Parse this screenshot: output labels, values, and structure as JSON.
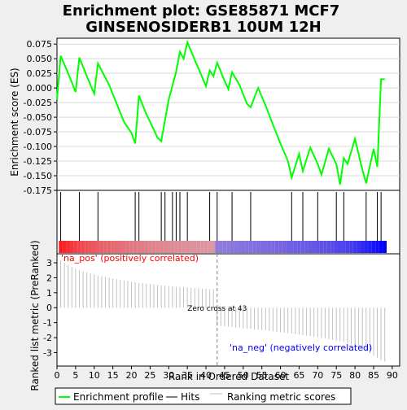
{
  "title_line1": "Enrichment plot: GSE85871 MCF7",
  "title_line2": "GINSENOSIDERB1 10UM 12H",
  "colors": {
    "background": "#efefef",
    "enrichment_line": "#00ff00",
    "hits": "#000000",
    "ranking_bars": "#c0c0c0",
    "zero_cross": "#808080",
    "pos_label": "#ff0000",
    "neg_label": "#0000ff"
  },
  "chart_data": [
    {
      "name": "enrichment-profile",
      "type": "line",
      "ylabel": "Enrichment score (ES)",
      "ylim": [
        -0.175,
        0.085
      ],
      "yticks": [
        0.075,
        0.05,
        0.025,
        0.0,
        -0.025,
        -0.05,
        -0.075,
        -0.1,
        -0.125,
        -0.15,
        -0.175
      ],
      "ytick_labels": [
        "0.075",
        "0.050",
        "0.025",
        "0.000",
        "-0.025",
        "-0.050",
        "-0.075",
        "-0.100",
        "-0.125",
        "-0.150",
        "-0.175"
      ],
      "xlim": [
        0,
        92
      ],
      "grid": true,
      "series": [
        {
          "x": [
            0,
            1,
            3,
            5,
            6,
            9,
            10,
            11,
            14,
            18,
            20,
            21,
            22,
            24,
            25,
            27,
            28,
            29,
            30,
            32,
            33,
            34,
            35,
            37,
            40,
            41,
            42,
            43,
            45,
            46,
            47,
            49,
            51,
            52,
            54,
            56,
            58,
            60,
            62,
            63,
            65,
            66,
            68,
            70,
            71,
            73,
            75,
            76,
            77,
            78,
            80,
            82,
            83,
            85,
            86,
            87,
            88
          ],
          "y": [
            -0.02,
            0.055,
            0.025,
            -0.007,
            0.052,
            0.005,
            -0.01,
            0.042,
            0.005,
            -0.058,
            -0.077,
            -0.095,
            -0.013,
            -0.045,
            -0.058,
            -0.085,
            -0.091,
            -0.055,
            -0.02,
            0.028,
            0.062,
            0.05,
            0.078,
            0.048,
            0.003,
            0.03,
            0.02,
            0.043,
            0.012,
            -0.002,
            0.027,
            0.005,
            -0.027,
            -0.033,
            0.0,
            -0.03,
            -0.063,
            -0.095,
            -0.125,
            -0.153,
            -0.113,
            -0.142,
            -0.102,
            -0.13,
            -0.148,
            -0.104,
            -0.13,
            -0.165,
            -0.12,
            -0.13,
            -0.087,
            -0.14,
            -0.163,
            -0.104,
            -0.135,
            0.015,
            0.015
          ]
        }
      ]
    },
    {
      "name": "hits",
      "type": "scatter",
      "x": [
        1,
        6,
        11,
        21,
        22,
        28,
        29,
        31,
        32,
        33,
        35,
        41,
        43,
        47,
        52,
        63,
        66,
        70,
        75,
        77,
        83,
        86,
        87
      ]
    },
    {
      "name": "ranking-metric",
      "type": "bar",
      "xlabel": "Rank in Ordered Dataset",
      "ylabel": "Ranked list metric (PreRanked)",
      "ylim": [
        -3.9,
        3.6
      ],
      "yticks": [
        3,
        2,
        1,
        0,
        -1,
        -2,
        -3
      ],
      "xticks": [
        0,
        5,
        10,
        15,
        20,
        25,
        30,
        35,
        40,
        45,
        50,
        55,
        60,
        65,
        70,
        75,
        80,
        85,
        90
      ],
      "zero_cross": 43,
      "zero_cross_label": "Zero cross at 43",
      "pos_label": "'na_pos' (positively correlated)",
      "neg_label": "'na_neg' (negatively correlated)",
      "x": [
        1,
        2,
        3,
        4,
        5,
        6,
        7,
        8,
        9,
        10,
        11,
        12,
        13,
        14,
        15,
        16,
        17,
        18,
        19,
        20,
        21,
        22,
        23,
        24,
        25,
        26,
        27,
        28,
        29,
        30,
        31,
        32,
        33,
        34,
        35,
        36,
        37,
        38,
        39,
        40,
        41,
        42,
        43,
        44,
        45,
        46,
        47,
        48,
        49,
        50,
        51,
        52,
        53,
        54,
        55,
        56,
        57,
        58,
        59,
        60,
        61,
        62,
        63,
        64,
        65,
        66,
        67,
        68,
        69,
        70,
        71,
        72,
        73,
        74,
        75,
        76,
        77,
        78,
        79,
        80,
        81,
        82,
        83,
        84,
        85,
        86,
        87,
        88
      ],
      "values": [
        3.15,
        3.0,
        2.85,
        2.72,
        2.6,
        2.5,
        2.42,
        2.35,
        2.28,
        2.22,
        2.16,
        2.1,
        2.05,
        2.0,
        1.95,
        1.9,
        1.86,
        1.82,
        1.78,
        1.74,
        1.7,
        1.67,
        1.64,
        1.61,
        1.58,
        1.55,
        1.52,
        1.49,
        1.47,
        1.45,
        1.43,
        1.41,
        1.39,
        1.37,
        1.35,
        1.33,
        1.31,
        1.29,
        1.27,
        1.26,
        1.25,
        1.24,
        -1.2,
        -1.22,
        -1.25,
        -1.27,
        -1.3,
        -1.32,
        -1.35,
        -1.37,
        -1.4,
        -1.42,
        -1.45,
        -1.47,
        -1.5,
        -1.52,
        -1.55,
        -1.58,
        -1.61,
        -1.64,
        -1.67,
        -1.7,
        -1.73,
        -1.76,
        -1.8,
        -1.83,
        -1.87,
        -1.9,
        -1.94,
        -1.98,
        -2.02,
        -2.06,
        -2.1,
        -2.15,
        -2.2,
        -2.25,
        -2.3,
        -2.37,
        -2.45,
        -2.55,
        -2.65,
        -2.78,
        -2.92,
        -3.05,
        -3.2,
        -3.35,
        -3.5,
        -3.6
      ]
    }
  ],
  "legend": {
    "items": [
      {
        "label": "Enrichment profile",
        "color": "#00ff00"
      },
      {
        "label": "Hits",
        "color": "#000000"
      },
      {
        "label": "Ranking metric scores",
        "color": "#c0c0c0"
      }
    ]
  }
}
